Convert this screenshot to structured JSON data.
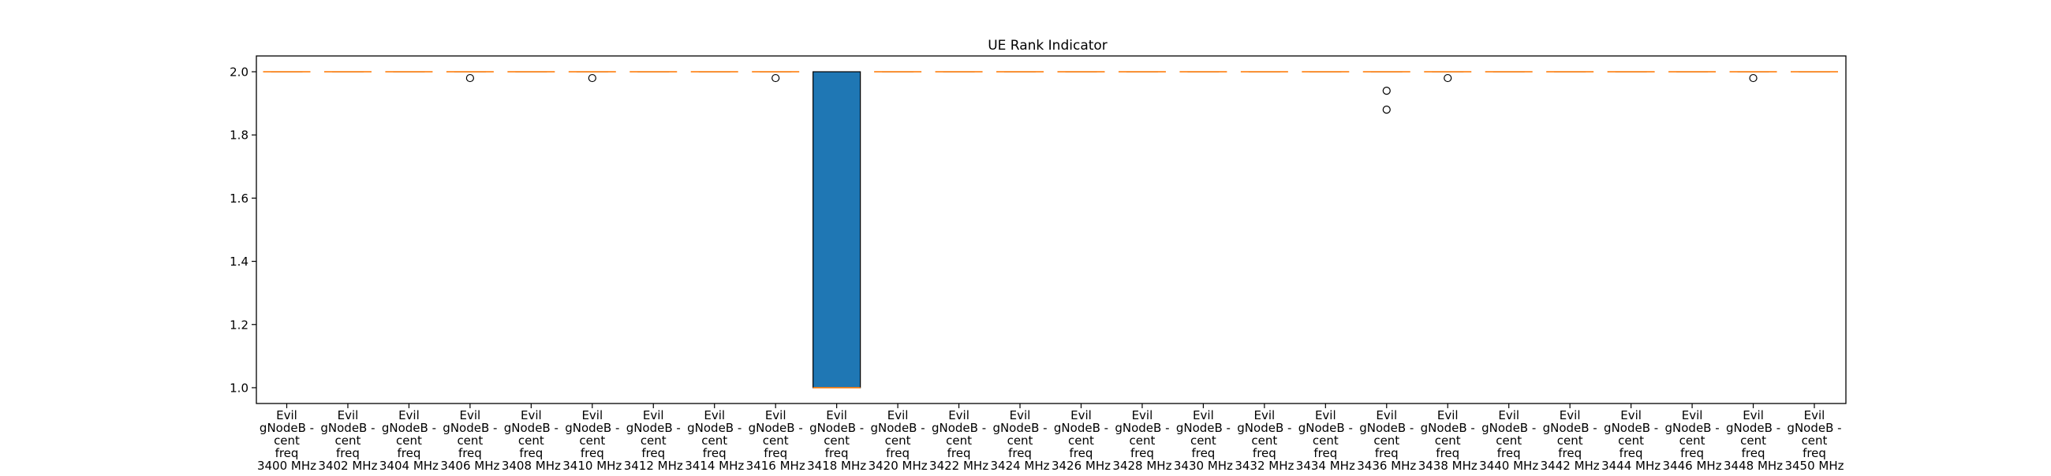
{
  "chart_data": {
    "type": "box",
    "title": "UE Rank Indicator",
    "xlabel": "",
    "ylabel": "",
    "ylim": [
      0.95,
      2.05
    ],
    "yticks": [
      1.0,
      1.2,
      1.4,
      1.6,
      1.8,
      2.0
    ],
    "ytick_labels": [
      "1.0",
      "1.2",
      "1.4",
      "1.6",
      "1.8",
      "2.0"
    ],
    "grid": false,
    "legend": "none",
    "box_color": "#1f77b4",
    "median_color": "#ff7f0e",
    "categories": [
      "Evil gNodeB - cent freq 3400 MHz",
      "Evil gNodeB - cent freq 3402 MHz",
      "Evil gNodeB - cent freq 3404 MHz",
      "Evil gNodeB - cent freq 3406 MHz",
      "Evil gNodeB - cent freq 3408 MHz",
      "Evil gNodeB - cent freq 3410 MHz",
      "Evil gNodeB - cent freq 3412 MHz",
      "Evil gNodeB - cent freq 3414 MHz",
      "Evil gNodeB - cent freq 3416 MHz",
      "Evil gNodeB - cent freq 3418 MHz",
      "Evil gNodeB - cent freq 3420 MHz",
      "Evil gNodeB - cent freq 3422 MHz",
      "Evil gNodeB - cent freq 3424 MHz",
      "Evil gNodeB - cent freq 3426 MHz",
      "Evil gNodeB - cent freq 3428 MHz",
      "Evil gNodeB - cent freq 3430 MHz",
      "Evil gNodeB - cent freq 3432 MHz",
      "Evil gNodeB - cent freq 3434 MHz",
      "Evil gNodeB - cent freq 3436 MHz",
      "Evil gNodeB - cent freq 3438 MHz",
      "Evil gNodeB - cent freq 3440 MHz",
      "Evil gNodeB - cent freq 3442 MHz",
      "Evil gNodeB - cent freq 3444 MHz",
      "Evil gNodeB - cent freq 3446 MHz",
      "Evil gNodeB - cent freq 3448 MHz",
      "Evil gNodeB - cent freq 3450 MHz"
    ],
    "label_lines": [
      [
        "Evil",
        "gNodeB -",
        "cent",
        "freq",
        "3400 MHz"
      ],
      [
        "Evil",
        "gNodeB -",
        "cent",
        "freq",
        "3402 MHz"
      ],
      [
        "Evil",
        "gNodeB -",
        "cent",
        "freq",
        "3404 MHz"
      ],
      [
        "Evil",
        "gNodeB -",
        "cent",
        "freq",
        "3406 MHz"
      ],
      [
        "Evil",
        "gNodeB -",
        "cent",
        "freq",
        "3408 MHz"
      ],
      [
        "Evil",
        "gNodeB -",
        "cent",
        "freq",
        "3410 MHz"
      ],
      [
        "Evil",
        "gNodeB -",
        "cent",
        "freq",
        "3412 MHz"
      ],
      [
        "Evil",
        "gNodeB -",
        "cent",
        "freq",
        "3414 MHz"
      ],
      [
        "Evil",
        "gNodeB -",
        "cent",
        "freq",
        "3416 MHz"
      ],
      [
        "Evil",
        "gNodeB -",
        "cent",
        "freq",
        "3418 MHz"
      ],
      [
        "Evil",
        "gNodeB -",
        "cent",
        "freq",
        "3420 MHz"
      ],
      [
        "Evil",
        "gNodeB -",
        "cent",
        "freq",
        "3422 MHz"
      ],
      [
        "Evil",
        "gNodeB -",
        "cent",
        "freq",
        "3424 MHz"
      ],
      [
        "Evil",
        "gNodeB -",
        "cent",
        "freq",
        "3426 MHz"
      ],
      [
        "Evil",
        "gNodeB -",
        "cent",
        "freq",
        "3428 MHz"
      ],
      [
        "Evil",
        "gNodeB -",
        "cent",
        "freq",
        "3430 MHz"
      ],
      [
        "Evil",
        "gNodeB -",
        "cent",
        "freq",
        "3432 MHz"
      ],
      [
        "Evil",
        "gNodeB -",
        "cent",
        "freq",
        "3434 MHz"
      ],
      [
        "Evil",
        "gNodeB -",
        "cent",
        "freq",
        "3436 MHz"
      ],
      [
        "Evil",
        "gNodeB -",
        "cent",
        "freq",
        "3438 MHz"
      ],
      [
        "Evil",
        "gNodeB -",
        "cent",
        "freq",
        "3440 MHz"
      ],
      [
        "Evil",
        "gNodeB -",
        "cent",
        "freq",
        "3442 MHz"
      ],
      [
        "Evil",
        "gNodeB -",
        "cent",
        "freq",
        "3444 MHz"
      ],
      [
        "Evil",
        "gNodeB -",
        "cent",
        "freq",
        "3446 MHz"
      ],
      [
        "Evil",
        "gNodeB -",
        "cent",
        "freq",
        "3448 MHz"
      ],
      [
        "Evil",
        "gNodeB -",
        "cent",
        "freq",
        "3450 MHz"
      ]
    ],
    "boxes": [
      {
        "whislo": 2.0,
        "q1": 2.0,
        "median": 2.0,
        "q3": 2.0,
        "whishi": 2.0,
        "fliers": []
      },
      {
        "whislo": 2.0,
        "q1": 2.0,
        "median": 2.0,
        "q3": 2.0,
        "whishi": 2.0,
        "fliers": []
      },
      {
        "whislo": 2.0,
        "q1": 2.0,
        "median": 2.0,
        "q3": 2.0,
        "whishi": 2.0,
        "fliers": []
      },
      {
        "whislo": 2.0,
        "q1": 2.0,
        "median": 2.0,
        "q3": 2.0,
        "whishi": 2.0,
        "fliers": [
          1.98
        ]
      },
      {
        "whislo": 2.0,
        "q1": 2.0,
        "median": 2.0,
        "q3": 2.0,
        "whishi": 2.0,
        "fliers": []
      },
      {
        "whislo": 2.0,
        "q1": 2.0,
        "median": 2.0,
        "q3": 2.0,
        "whishi": 2.0,
        "fliers": [
          1.98
        ]
      },
      {
        "whislo": 2.0,
        "q1": 2.0,
        "median": 2.0,
        "q3": 2.0,
        "whishi": 2.0,
        "fliers": []
      },
      {
        "whislo": 2.0,
        "q1": 2.0,
        "median": 2.0,
        "q3": 2.0,
        "whishi": 2.0,
        "fliers": []
      },
      {
        "whislo": 2.0,
        "q1": 2.0,
        "median": 2.0,
        "q3": 2.0,
        "whishi": 2.0,
        "fliers": [
          1.98
        ]
      },
      {
        "whislo": 1.0,
        "q1": 1.0,
        "median": 1.0,
        "q3": 2.0,
        "whishi": 2.0,
        "fliers": []
      },
      {
        "whislo": 2.0,
        "q1": 2.0,
        "median": 2.0,
        "q3": 2.0,
        "whishi": 2.0,
        "fliers": []
      },
      {
        "whislo": 2.0,
        "q1": 2.0,
        "median": 2.0,
        "q3": 2.0,
        "whishi": 2.0,
        "fliers": []
      },
      {
        "whislo": 2.0,
        "q1": 2.0,
        "median": 2.0,
        "q3": 2.0,
        "whishi": 2.0,
        "fliers": []
      },
      {
        "whislo": 2.0,
        "q1": 2.0,
        "median": 2.0,
        "q3": 2.0,
        "whishi": 2.0,
        "fliers": []
      },
      {
        "whislo": 2.0,
        "q1": 2.0,
        "median": 2.0,
        "q3": 2.0,
        "whishi": 2.0,
        "fliers": []
      },
      {
        "whislo": 2.0,
        "q1": 2.0,
        "median": 2.0,
        "q3": 2.0,
        "whishi": 2.0,
        "fliers": []
      },
      {
        "whislo": 2.0,
        "q1": 2.0,
        "median": 2.0,
        "q3": 2.0,
        "whishi": 2.0,
        "fliers": []
      },
      {
        "whislo": 2.0,
        "q1": 2.0,
        "median": 2.0,
        "q3": 2.0,
        "whishi": 2.0,
        "fliers": []
      },
      {
        "whislo": 2.0,
        "q1": 2.0,
        "median": 2.0,
        "q3": 2.0,
        "whishi": 2.0,
        "fliers": [
          1.94,
          1.88
        ]
      },
      {
        "whislo": 2.0,
        "q1": 2.0,
        "median": 2.0,
        "q3": 2.0,
        "whishi": 2.0,
        "fliers": [
          1.98
        ]
      },
      {
        "whislo": 2.0,
        "q1": 2.0,
        "median": 2.0,
        "q3": 2.0,
        "whishi": 2.0,
        "fliers": []
      },
      {
        "whislo": 2.0,
        "q1": 2.0,
        "median": 2.0,
        "q3": 2.0,
        "whishi": 2.0,
        "fliers": []
      },
      {
        "whislo": 2.0,
        "q1": 2.0,
        "median": 2.0,
        "q3": 2.0,
        "whishi": 2.0,
        "fliers": []
      },
      {
        "whislo": 2.0,
        "q1": 2.0,
        "median": 2.0,
        "q3": 2.0,
        "whishi": 2.0,
        "fliers": []
      },
      {
        "whislo": 2.0,
        "q1": 2.0,
        "median": 2.0,
        "q3": 2.0,
        "whishi": 2.0,
        "fliers": [
          1.98
        ]
      },
      {
        "whislo": 2.0,
        "q1": 2.0,
        "median": 2.0,
        "q3": 2.0,
        "whishi": 2.0,
        "fliers": []
      }
    ]
  }
}
